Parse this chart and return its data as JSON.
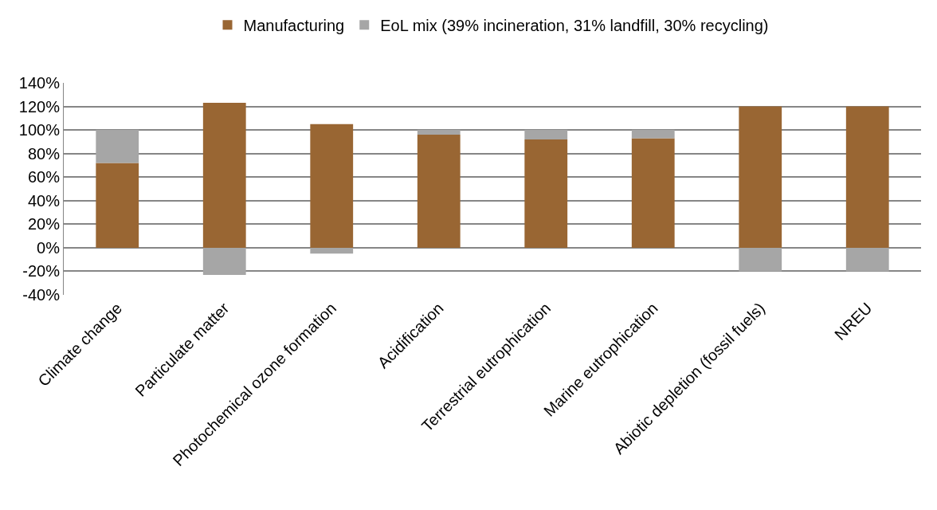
{
  "chart_data": {
    "type": "bar",
    "stacked": true,
    "categories": [
      "Climate change",
      "Particulate matter",
      "Photochemical ozone formation",
      "Acidification",
      "Terrestrial eutrophication",
      "Marine eutrophication",
      "Abiotic depletion (fossil fuels)",
      "NREU"
    ],
    "series": [
      {
        "name": "Manufacturing",
        "color": "#996633",
        "values": [
          72,
          123,
          105,
          96,
          92,
          93,
          120,
          120
        ]
      },
      {
        "name": "EoL mix (39% incineration, 31% landfill, 30% recycling)",
        "color": "#a6a6a6",
        "values": [
          28,
          -23,
          -5,
          4,
          8,
          7,
          -20,
          -20
        ]
      }
    ],
    "ylim": [
      -40,
      140
    ],
    "yticks": [
      {
        "value": -40,
        "label": "-40%"
      },
      {
        "value": -20,
        "label": "-20%"
      },
      {
        "value": 0,
        "label": "0%"
      },
      {
        "value": 20,
        "label": "20%"
      },
      {
        "value": 40,
        "label": "40%"
      },
      {
        "value": 60,
        "label": "60%"
      },
      {
        "value": 80,
        "label": "80%"
      },
      {
        "value": 100,
        "label": "100%"
      },
      {
        "value": 120,
        "label": "120%"
      },
      {
        "value": 140,
        "label": "140%"
      }
    ],
    "grid": "y",
    "legend": "top"
  }
}
